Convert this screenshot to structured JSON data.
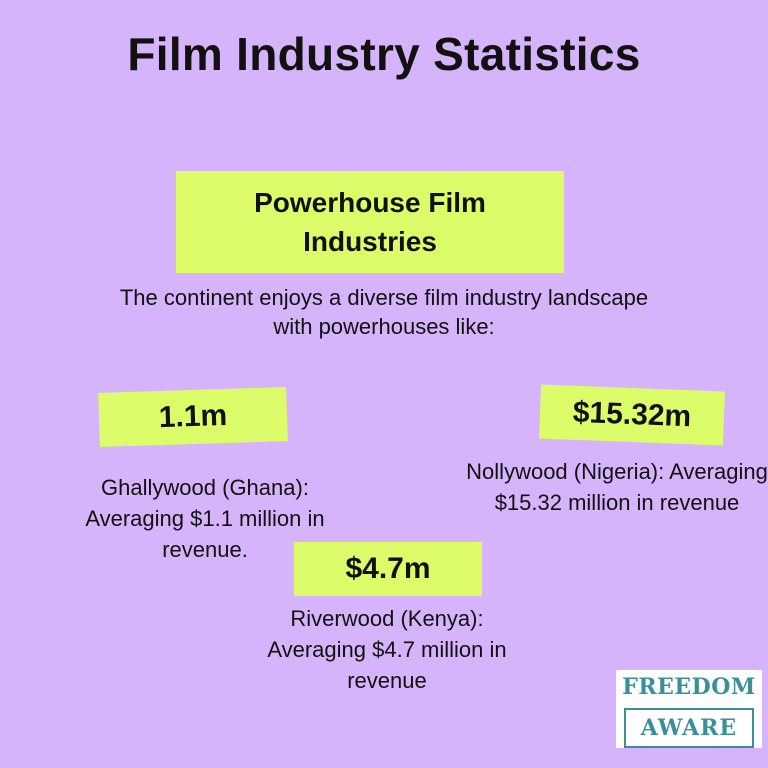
{
  "title": "Film Industry Statistics",
  "section": {
    "title": "Powerhouse Film Industries",
    "intro": "The continent enjoys a diverse film industry landscape with powerhouses like:"
  },
  "stats": {
    "ghana": {
      "value": "1.1m",
      "description": "Ghallywood (Ghana): Averaging $1.1 million in revenue."
    },
    "nigeria": {
      "value": "$15.32m",
      "description": "Nollywood (Nigeria): Averaging $15.32 million in revenue"
    },
    "kenya": {
      "value": "$4.7m",
      "description": "Riverwood (Kenya): Averaging $4.7 million in revenue"
    }
  },
  "logo": {
    "line1": "FREEDOM",
    "line2": "AWARE"
  },
  "colors": {
    "background": "#d6b4fc",
    "highlight": "#dcfc6a",
    "logo_accent": "#3b8f9a"
  }
}
